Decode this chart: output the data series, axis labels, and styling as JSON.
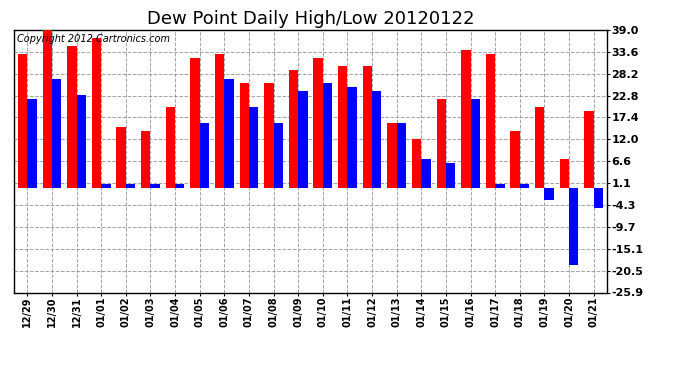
{
  "title": "Dew Point Daily High/Low 20120122",
  "copyright": "Copyright 2012 Cartronics.com",
  "dates": [
    "12/29",
    "12/30",
    "12/31",
    "01/01",
    "01/02",
    "01/03",
    "01/04",
    "01/05",
    "01/06",
    "01/07",
    "01/08",
    "01/09",
    "01/10",
    "01/11",
    "01/12",
    "01/13",
    "01/14",
    "01/15",
    "01/16",
    "01/17",
    "01/18",
    "01/19",
    "01/20",
    "01/21"
  ],
  "highs": [
    33.0,
    39.0,
    35.0,
    37.0,
    15.0,
    14.0,
    20.0,
    32.0,
    33.0,
    26.0,
    26.0,
    29.0,
    32.0,
    30.0,
    30.0,
    16.0,
    12.0,
    22.0,
    34.0,
    33.0,
    14.0,
    20.0,
    7.0,
    19.0
  ],
  "lows": [
    22.0,
    27.0,
    23.0,
    1.0,
    1.0,
    1.0,
    1.0,
    16.0,
    27.0,
    20.0,
    16.0,
    24.0,
    26.0,
    25.0,
    24.0,
    16.0,
    7.0,
    6.0,
    22.0,
    1.0,
    1.0,
    -3.0,
    -19.0,
    -5.0
  ],
  "ylim": [
    -25.9,
    39.0
  ],
  "yticks": [
    39.0,
    33.6,
    28.2,
    22.8,
    17.4,
    12.0,
    6.6,
    1.1,
    -4.3,
    -9.7,
    -15.1,
    -20.5,
    -25.9
  ],
  "high_color": "#ff0000",
  "low_color": "#0000ff",
  "bg_color": "#ffffff",
  "grid_color": "#999999",
  "title_fontsize": 13,
  "copyright_fontsize": 7,
  "figsize": [
    6.9,
    3.75
  ],
  "dpi": 100
}
